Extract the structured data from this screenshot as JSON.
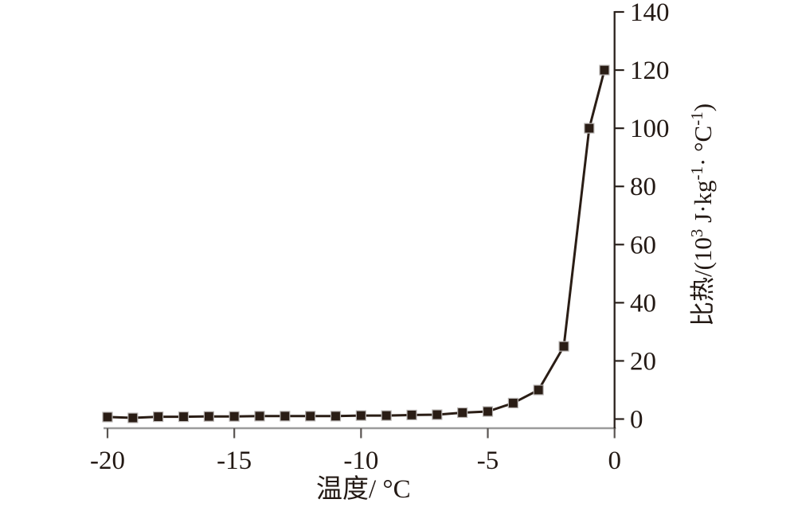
{
  "chart_data": {
    "type": "line",
    "series": [
      {
        "name": "specific-heat-vs-temperature",
        "x": [
          -20,
          -19,
          -18,
          -17,
          -16,
          -15,
          -14,
          -13,
          -12,
          -11,
          -10,
          -9,
          -8,
          -7,
          -6,
          -5,
          -4,
          -3,
          -2,
          -1,
          -0.4
        ],
        "y": [
          0.7,
          0.4,
          0.8,
          0.8,
          0.9,
          0.9,
          1.0,
          1.0,
          1.0,
          1.0,
          1.2,
          1.2,
          1.4,
          1.5,
          2.2,
          2.6,
          5.5,
          10,
          25,
          100,
          120
        ]
      }
    ],
    "title": "",
    "xlabel": "温度/ °C",
    "ylabel": "比热/(10³ J·kg⁻¹· °C⁻¹)",
    "ylabel_parts": [
      {
        "t": "比热/(10",
        "sup": false
      },
      {
        "t": "3",
        "sup": true
      },
      {
        "t": " J·kg",
        "sup": false
      },
      {
        "t": "-1",
        "sup": true
      },
      {
        "t": "· °C",
        "sup": false
      },
      {
        "t": "-1",
        "sup": true
      },
      {
        "t": ")",
        "sup": false
      }
    ],
    "xlim": [
      -20,
      0
    ],
    "ylim": [
      0,
      140
    ],
    "x_ticks": [
      -20,
      -15,
      -10,
      -5,
      0
    ],
    "x_tick_labels": [
      "-20",
      "-15",
      "-10",
      "-5",
      "0"
    ],
    "y_ticks": [
      0,
      20,
      40,
      60,
      80,
      100,
      120,
      140
    ],
    "y_tick_labels": [
      "0",
      "20",
      "40",
      "60",
      "80",
      "100",
      "120",
      "140"
    ],
    "y_axis_side": "right",
    "grid": false,
    "legend": "none",
    "marker": "square",
    "colors": {
      "series_line": "#2a1d15",
      "marker_fill": "#2a1d15",
      "marker_edge": "#b8b4b2",
      "x_axis_line": "#9b9b9b",
      "x_tick": "#5a5552",
      "y_axis_line": "#2a211c",
      "text": "#231914",
      "background": "#ffffff"
    }
  }
}
